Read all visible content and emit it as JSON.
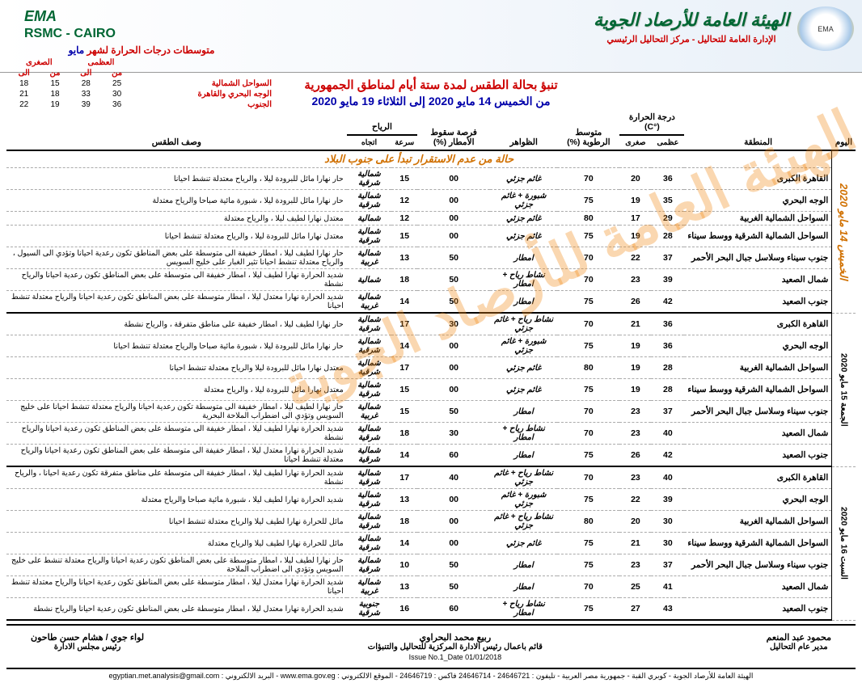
{
  "org": {
    "main_ar": "الهيئة العامة للأرصاد الجوية",
    "sub_ar": "الإدارة العامة للتحاليل - مركز التحاليل الرئيسي",
    "ema": "EMA",
    "rsmc": "RSMC - CAIRO",
    "logo_label": "EMA"
  },
  "watermark": "الهيئة العامة للأرصاد الجوية",
  "avg_panel": {
    "title_prefix": "متوسطات درجات الحرارة لشهر",
    "month": "مايو",
    "col_groups": {
      "max": "العظمى",
      "min": "الصغرى",
      "from": "من",
      "to": "الى"
    },
    "rows": [
      {
        "region": "السواحل الشمالية",
        "max_from": "25",
        "max_to": "28",
        "min_from": "15",
        "min_to": "18"
      },
      {
        "region": "الوجه البحري والقاهرة",
        "max_from": "30",
        "max_to": "33",
        "min_from": "18",
        "min_to": "21"
      },
      {
        "region": "الجنوب",
        "max_from": "36",
        "max_to": "39",
        "min_from": "19",
        "min_to": "22"
      }
    ]
  },
  "titles": {
    "main": "تنبؤ بحالة الطقس لمدة ستة أيام لمناطق الجمهورية",
    "range": "من  الخميس  14 مايو 2020  إلى  الثلاثاء  19 مايو 2020"
  },
  "instability": "حالة من عدم الاستقرار  تبدأ على جنوب البلاد",
  "columns": {
    "day": "اليوم",
    "region": "المنطقة",
    "temp_group": "درجة الحرارة (°C)",
    "temp_max": "عظمى",
    "temp_min": "صغرى",
    "humidity": "متوسط الرطوبة (%)",
    "phenomena": "الظواهر",
    "rain_chance": "فرصة سقوط الأمطار (%)",
    "wind_group": "الرياح",
    "wind_speed": "سرعة",
    "wind_dir": "اتجاه",
    "desc": "وصف الطقس"
  },
  "days": [
    {
      "label": "الخميس 14 مايو 2020",
      "rows": [
        {
          "region": "القاهرة الكبرى",
          "tmax": "36",
          "tmin": "20",
          "hum": "70",
          "phenom": "غائم جزئي",
          "rain": "00",
          "wspd": "15",
          "wdir": "شمالية شرقية",
          "desc": "حار نهارا مائل للبرودة ليلا ، والرياح معتدلة تنشط احيانا"
        },
        {
          "region": "الوجه البحري",
          "tmax": "35",
          "tmin": "19",
          "hum": "75",
          "phenom": "شبورة + غائم جزئي",
          "rain": "00",
          "wspd": "12",
          "wdir": "شمالية شرقية",
          "desc": "حار نهارا مائل للبرودة ليلا ، شبورة مائية صباحا والرياح معتدلة"
        },
        {
          "region": "السواحل الشمالية الغربية",
          "tmax": "29",
          "tmin": "17",
          "hum": "80",
          "phenom": "غائم جزئي",
          "rain": "00",
          "wspd": "12",
          "wdir": "شمالية",
          "desc": "معتدل نهارا لطيف ليلا ، والرياح معتدلة"
        },
        {
          "region": "السواحل الشمالية الشرقية ووسط سيناء",
          "tmax": "28",
          "tmin": "19",
          "hum": "75",
          "phenom": "غائم جزئي",
          "rain": "00",
          "wspd": "15",
          "wdir": "شمالية شرقية",
          "desc": "معتدل نهارا مائل للبرودة ليلا ، والرياح معتدلة تنشط احيانا"
        },
        {
          "region": "جنوب سيناء وسلاسل جبال البحر الأحمر",
          "tmax": "37",
          "tmin": "22",
          "hum": "70",
          "phenom": "امطار",
          "rain": "50",
          "wspd": "13",
          "wdir": "شمالية غربية",
          "desc": "حار نهارا لطيف ليلا ، امطار خفيفة الى متوسطة على بعض المناطق تكون رعدية احيانا وتؤدي الى السيول ، والرياح معتدلة تنشط احيانا تثير الغبار على خليج السويس"
        },
        {
          "region": "شمال الصعيد",
          "tmax": "39",
          "tmin": "23",
          "hum": "70",
          "phenom": "نشاط رياح + امطار",
          "rain": "50",
          "wspd": "18",
          "wdir": "شمالية",
          "desc": "شديد الحرارة نهارا لطيف ليلا ، امطار خفيفة الى متوسطة على بعض المناطق تكون رعدية احيانا والرياح نشطة"
        },
        {
          "region": "جنوب الصعيد",
          "tmax": "42",
          "tmin": "26",
          "hum": "75",
          "phenom": "امطار",
          "rain": "50",
          "wspd": "14",
          "wdir": "شمالية غربية",
          "desc": "شديد الحرارة نهارا معتدل ليلا ، امطار متوسطة على بعض المناطق تكون رعدية احيانا والرياح معتدلة تنشط احيانا"
        }
      ]
    },
    {
      "label": "الجمعة 15 مايو 2020",
      "rows": [
        {
          "region": "القاهرة الكبرى",
          "tmax": "36",
          "tmin": "21",
          "hum": "70",
          "phenom": "نشاط رياح + غائم جزئي",
          "rain": "30",
          "wspd": "17",
          "wdir": "شمالية شرقية",
          "desc": "حار نهارا لطيف ليلا ، امطار خفيفة على مناطق متفرقة ، والرياح نشطة"
        },
        {
          "region": "الوجه البحري",
          "tmax": "36",
          "tmin": "19",
          "hum": "75",
          "phenom": "شبورة + غائم جزئي",
          "rain": "00",
          "wspd": "14",
          "wdir": "شمالية شرقية",
          "desc": "حار نهارا مائل للبرودة ليلا ، شبورة مائية صباحا والرياح معتدلة تنشط احيانا"
        },
        {
          "region": "السواحل الشمالية الغربية",
          "tmax": "28",
          "tmin": "19",
          "hum": "80",
          "phenom": "غائم جزئي",
          "rain": "00",
          "wspd": "17",
          "wdir": "شمالية شرقية",
          "desc": "معتدل نهارا مائل للبرودة ليلا والرياح معتدلة تنشط احيانا"
        },
        {
          "region": "السواحل الشمالية الشرقية ووسط سيناء",
          "tmax": "28",
          "tmin": "19",
          "hum": "75",
          "phenom": "غائم جزئي",
          "rain": "00",
          "wspd": "15",
          "wdir": "شمالية شرقية",
          "desc": "معتدل نهارا مائل للبرودة ليلا ، والرياح معتدلة"
        },
        {
          "region": "جنوب سيناء وسلاسل جبال البحر الأحمر",
          "tmax": "37",
          "tmin": "23",
          "hum": "70",
          "phenom": "امطار",
          "rain": "50",
          "wspd": "15",
          "wdir": "شمالية غربية",
          "desc": "حار نهارا لطيف ليلا ، امطار خفيفة الى متوسطة تكون رعدية احيانا والرياح معتدلة تنشط احيانا على خليج السويس وتؤدي الى اضطراب الملاحة البحرية"
        },
        {
          "region": "شمال الصعيد",
          "tmax": "40",
          "tmin": "23",
          "hum": "70",
          "phenom": "نشاط رياح + امطار",
          "rain": "30",
          "wspd": "18",
          "wdir": "شمالية شرقية",
          "desc": "شديد الحرارة نهارا لطيف ليلا ، امطار خفيفة الى متوسطة على بعض المناطق تكون رعدية احيانا والرياح نشطة"
        },
        {
          "region": "جنوب الصعيد",
          "tmax": "42",
          "tmin": "26",
          "hum": "75",
          "phenom": "امطار",
          "rain": "60",
          "wspd": "14",
          "wdir": "شمالية شرقية",
          "desc": "شديد الحرارة نهارا معتدل ليلا ، امطار خفيفة الى متوسطة على بعض المناطق تكون رعدية احيانا والرياح معتدلة تنشط احيانا"
        }
      ]
    },
    {
      "label": "السبت 16 مايو 2020",
      "rows": [
        {
          "region": "القاهرة الكبرى",
          "tmax": "40",
          "tmin": "23",
          "hum": "70",
          "phenom": "نشاط رياح + غائم جزئي",
          "rain": "40",
          "wspd": "17",
          "wdir": "شمالية شرقية",
          "desc": "شديد الحرارة نهارا لطيف ليلا ، امطار خفيفة الى متوسطة على مناطق متفرقة تكون رعدية احيانا ، والرياح نشطة"
        },
        {
          "region": "الوجه البحري",
          "tmax": "39",
          "tmin": "22",
          "hum": "75",
          "phenom": "شبورة + غائم جزئي",
          "rain": "00",
          "wspd": "13",
          "wdir": "شمالية شرقية",
          "desc": "شديد الحرارة نهارا لطيف ليلا ، شبورة مائية صباحا والرياح معتدلة"
        },
        {
          "region": "السواحل الشمالية الغربية",
          "tmax": "30",
          "tmin": "20",
          "hum": "80",
          "phenom": "نشاط رياح + غائم جزئي",
          "rain": "00",
          "wspd": "18",
          "wdir": "شمالية شرقية",
          "desc": "مائل للحرارة نهارا لطيف ليلا والرياح معتدلة تنشط احيانا"
        },
        {
          "region": "السواحل الشمالية الشرقية ووسط سيناء",
          "tmax": "30",
          "tmin": "21",
          "hum": "75",
          "phenom": "غائم جزئي",
          "rain": "00",
          "wspd": "14",
          "wdir": "شمالية شرقية",
          "desc": "مائل للحرارة نهارا لطيف ليلا والرياح معتدلة"
        },
        {
          "region": "جنوب سيناء وسلاسل جبال البحر الأحمر",
          "tmax": "37",
          "tmin": "23",
          "hum": "75",
          "phenom": "امطار",
          "rain": "50",
          "wspd": "10",
          "wdir": "شمالية شرقية",
          "desc": "حار نهارا لطيف ليلا ، امطار متوسطة على بعض المناطق تكون رعدية احيانا والرياح معتدلة تنشط على خليج السويس وتؤدي الى اضطراب الملاحة"
        },
        {
          "region": "شمال الصعيد",
          "tmax": "41",
          "tmin": "25",
          "hum": "70",
          "phenom": "امطار",
          "rain": "50",
          "wspd": "13",
          "wdir": "شمالية غربية",
          "desc": "شديد الحرارة نهارا معتدل ليلا ، امطار متوسطة على بعض المناطق تكون رعدية احيانا والرياح معتدلة تنشط احيانا"
        },
        {
          "region": "جنوب الصعيد",
          "tmax": "43",
          "tmin": "27",
          "hum": "75",
          "phenom": "نشاط رياح + امطار",
          "rain": "60",
          "wspd": "16",
          "wdir": "جنوبية شرقية",
          "desc": "شديد الحرارة نهارا معتدل ليلا ، امطار متوسطة على بعض المناطق تكون رعدية احيانا والرياح نشطة"
        }
      ]
    }
  ],
  "signatures": {
    "right": {
      "name": "محمود عبد المنعم",
      "role": "مدير عام التحاليل"
    },
    "center": {
      "name": "ربيع محمد البحراوي",
      "role": "قائم باعمال رئيس الادارة المركزية للتحاليل والتنبؤات"
    },
    "left": {
      "name": "لواء جوي / هشام حسن طاحون",
      "role": "رئيس مجلس الادارة"
    },
    "issue": "Issue No.1_Date 01/01/2018"
  },
  "footer": "الهيئة العامة للأرصاد الجوية - كوبري القبة - جمهورية مصر العربية - تليفون : 24646721 - 24646714 فاكس : 24646719 - الموقع الالكتروني : www.ema.gov.eg - البريد الالكتروني : egyptian.met.analysis@gmail.com"
}
